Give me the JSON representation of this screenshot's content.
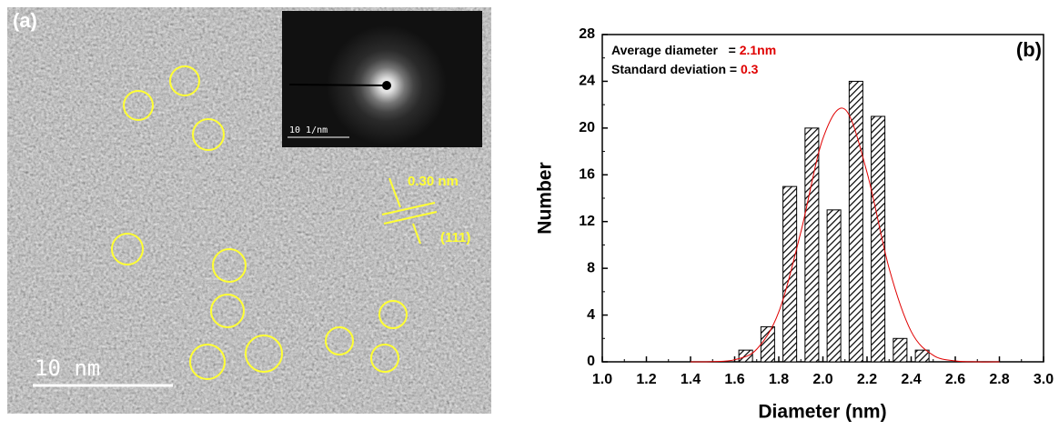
{
  "image_panel": {
    "label": "(a)",
    "diffraction_scale": "10 1/nm",
    "spacing_label": "0.30 nm",
    "plane_label": "(111)",
    "scale_bar": "10 nm"
  },
  "chart_data": {
    "type": "histogram",
    "panel_label": "(b)",
    "x_label": "Diameter (nm)",
    "y_label": "Number",
    "annotations": [
      {
        "text": "Average diameter   = ",
        "value_text": "2.1nm"
      },
      {
        "text": "Standard deviation = ",
        "value_text": "0.3"
      }
    ],
    "bins": [
      1.6,
      1.7,
      1.8,
      1.9,
      2.0,
      2.1,
      2.2,
      2.3,
      2.4,
      2.5
    ],
    "values": [
      1,
      3,
      15,
      20,
      13,
      24,
      21,
      2,
      1
    ],
    "color": "#000000",
    "fit": {
      "color": "#e00000",
      "x": [
        1.4,
        1.5,
        1.6,
        1.7,
        1.8,
        1.9,
        2.0,
        2.1,
        2.2,
        2.3,
        2.4,
        2.5,
        2.6,
        2.7,
        2.8
      ],
      "y": [
        0,
        0.02,
        0.18,
        1.08,
        4.27,
        11.1,
        19.1,
        21.6,
        16.2,
        8.0,
        2.6,
        0.56,
        0.08,
        0,
        0
      ]
    },
    "annotation_value_color": "#e00000",
    "xlim": [
      1.0,
      3.0
    ],
    "xticks": [
      {
        "value": 1.0,
        "label": "1.0"
      },
      1.2,
      1.4,
      1.6,
      1.8,
      {
        "value": 2.0,
        "label": "2.0"
      },
      2.2,
      2.4,
      2.6,
      2.8,
      {
        "value": 3.0,
        "label": "3.0"
      }
    ],
    "ylim": [
      0,
      28
    ],
    "yticks": [
      0,
      4,
      8,
      12,
      16,
      20,
      24,
      28
    ]
  }
}
